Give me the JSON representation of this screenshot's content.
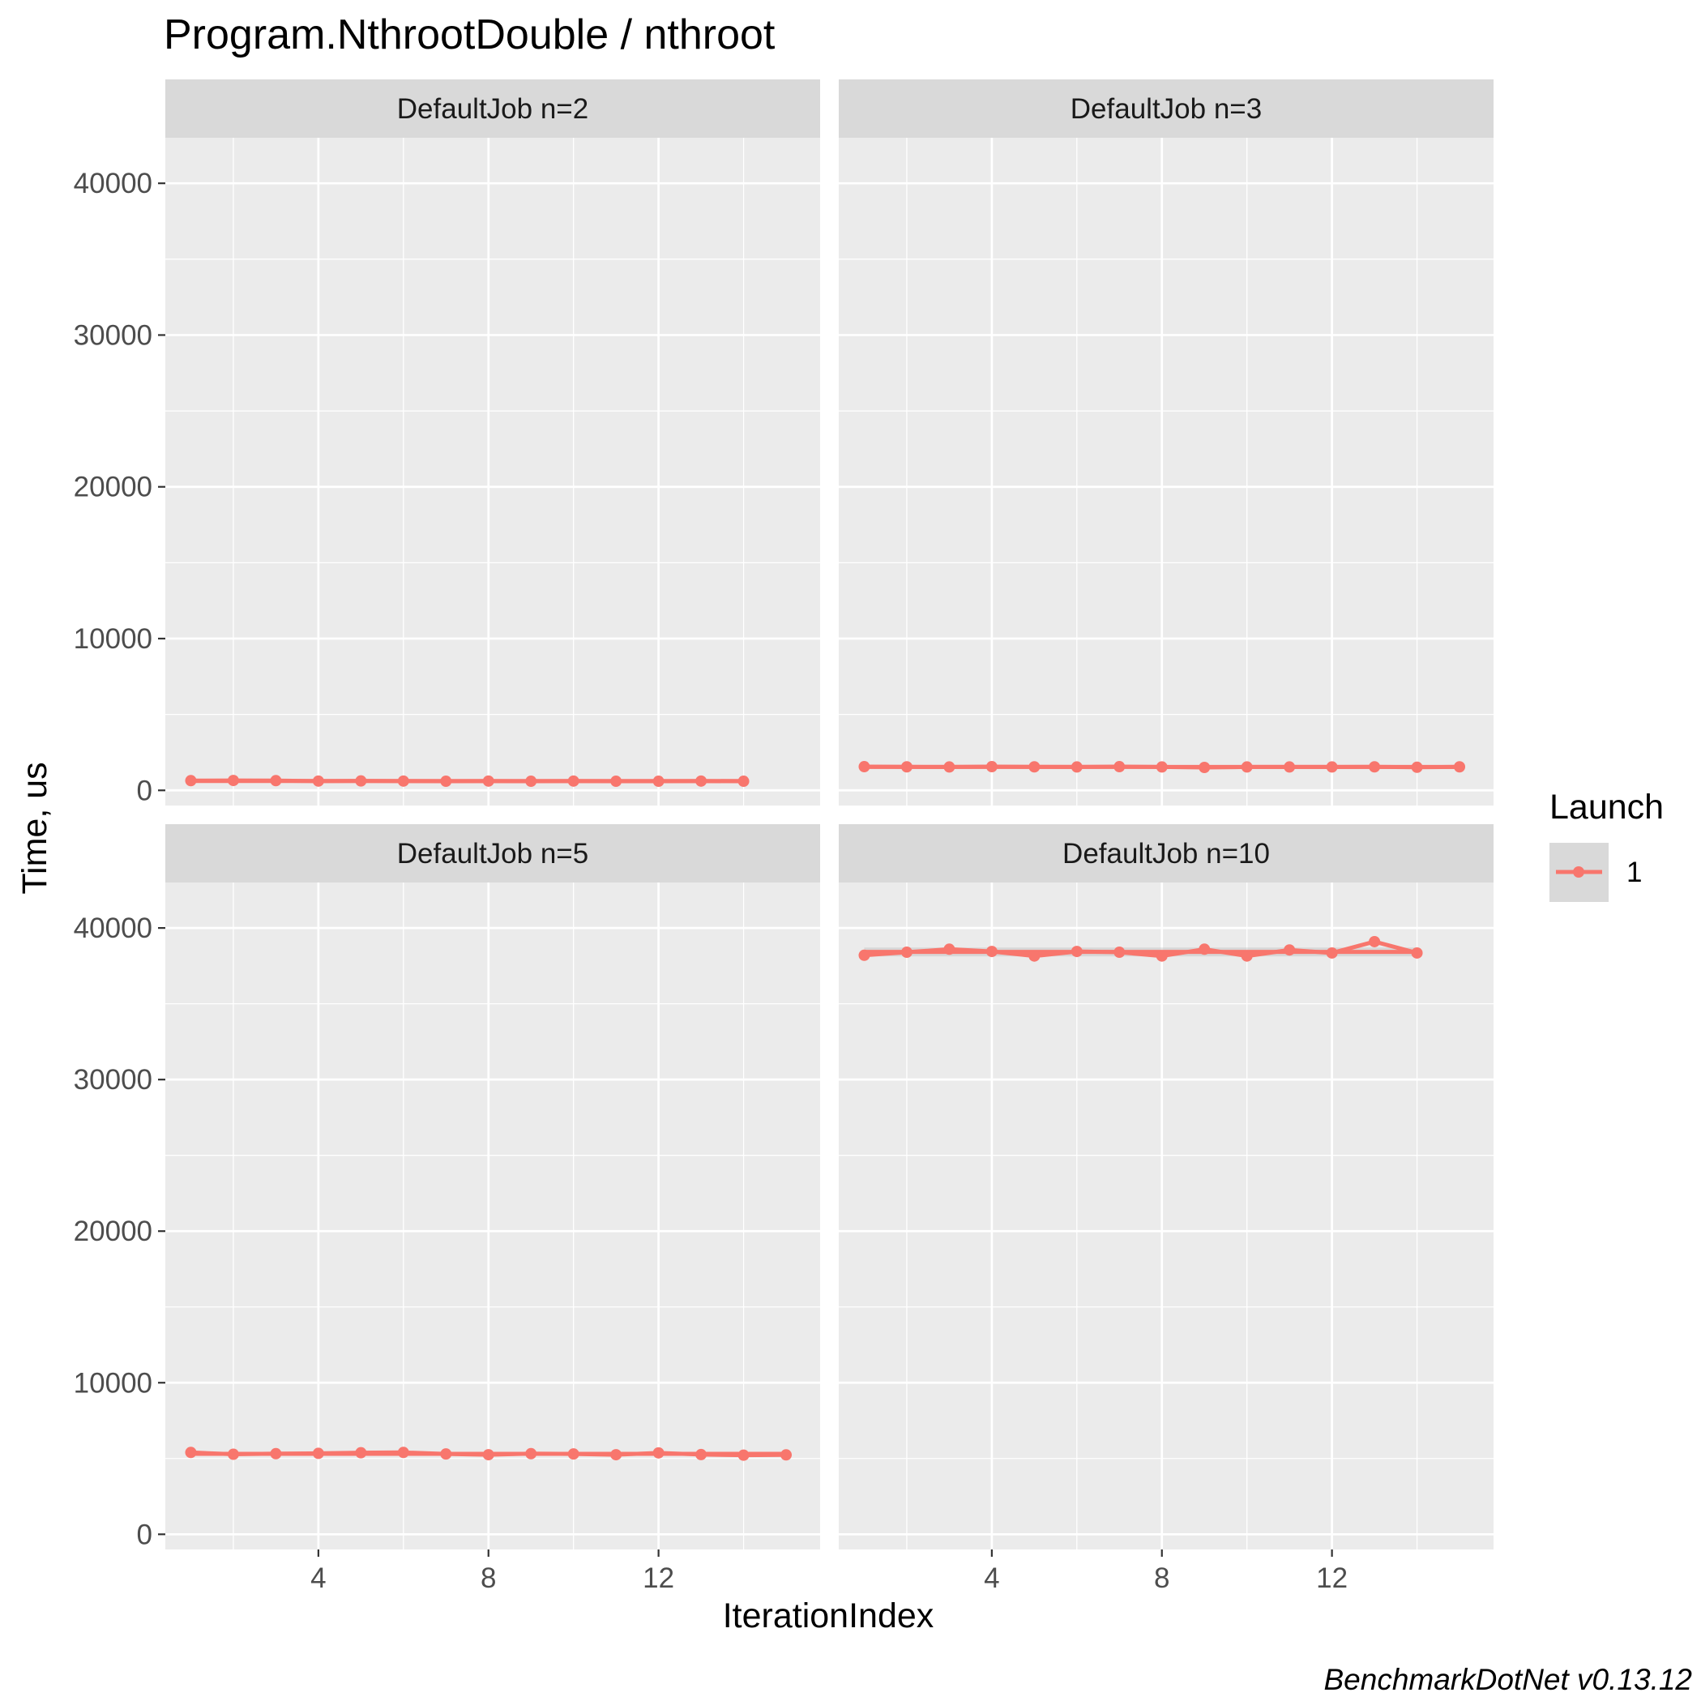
{
  "chart_data": {
    "type": "line",
    "title": "Program.NthrootDouble / nthroot",
    "xlabel": "IterationIndex",
    "ylabel": "Time, us",
    "caption": "BenchmarkDotNet v0.13.12",
    "xlim": [
      0.4,
      15.8
    ],
    "ylim": [
      -1000,
      43000
    ],
    "x_ticks": [
      4,
      8,
      12
    ],
    "y_ticks": [
      0,
      10000,
      20000,
      30000,
      40000
    ],
    "grid": true,
    "legend": {
      "title": "Launch",
      "position": "right",
      "entries": [
        "1"
      ]
    },
    "colors": {
      "series": "#F8766D",
      "panel_bg": "#EBEBEB",
      "strip_bg": "#D9D9D9",
      "grid": "#FFFFFF",
      "ribbon": "#BEBEBE"
    },
    "facets": [
      {
        "label": "DefaultJob n=2",
        "series": [
          {
            "name": "1",
            "x": [
              1,
              2,
              3,
              4,
              5,
              6,
              7,
              8,
              9,
              10,
              11,
              12,
              13,
              14
            ],
            "y": [
              640,
              650,
              640,
              610,
              620,
              610,
              600,
              610,
              600,
              610,
              600,
              600,
              610,
              600
            ]
          }
        ]
      },
      {
        "label": "DefaultJob n=3",
        "series": [
          {
            "name": "1",
            "x": [
              1,
              2,
              3,
              4,
              5,
              6,
              7,
              8,
              9,
              10,
              11,
              12,
              13,
              14,
              15
            ],
            "y": [
              1560,
              1550,
              1540,
              1560,
              1550,
              1540,
              1560,
              1540,
              1510,
              1540,
              1540,
              1540,
              1550,
              1520,
              1550
            ]
          }
        ]
      },
      {
        "label": "DefaultJob n=5",
        "series": [
          {
            "name": "1",
            "x": [
              1,
              2,
              3,
              4,
              5,
              6,
              7,
              8,
              9,
              10,
              11,
              12,
              13,
              14,
              15
            ],
            "y": [
              5400,
              5280,
              5320,
              5340,
              5380,
              5400,
              5300,
              5250,
              5320,
              5300,
              5250,
              5370,
              5260,
              5220,
              5240
            ]
          }
        ]
      },
      {
        "label": "DefaultJob n=10",
        "series": [
          {
            "name": "1",
            "x": [
              1,
              2,
              3,
              4,
              5,
              6,
              7,
              8,
              9,
              10,
              11,
              12,
              13,
              14
            ],
            "y": [
              38200,
              38400,
              38600,
              38450,
              38150,
              38450,
              38400,
              38150,
              38600,
              38150,
              38550,
              38350,
              39100,
              38350
            ]
          }
        ]
      }
    ]
  }
}
